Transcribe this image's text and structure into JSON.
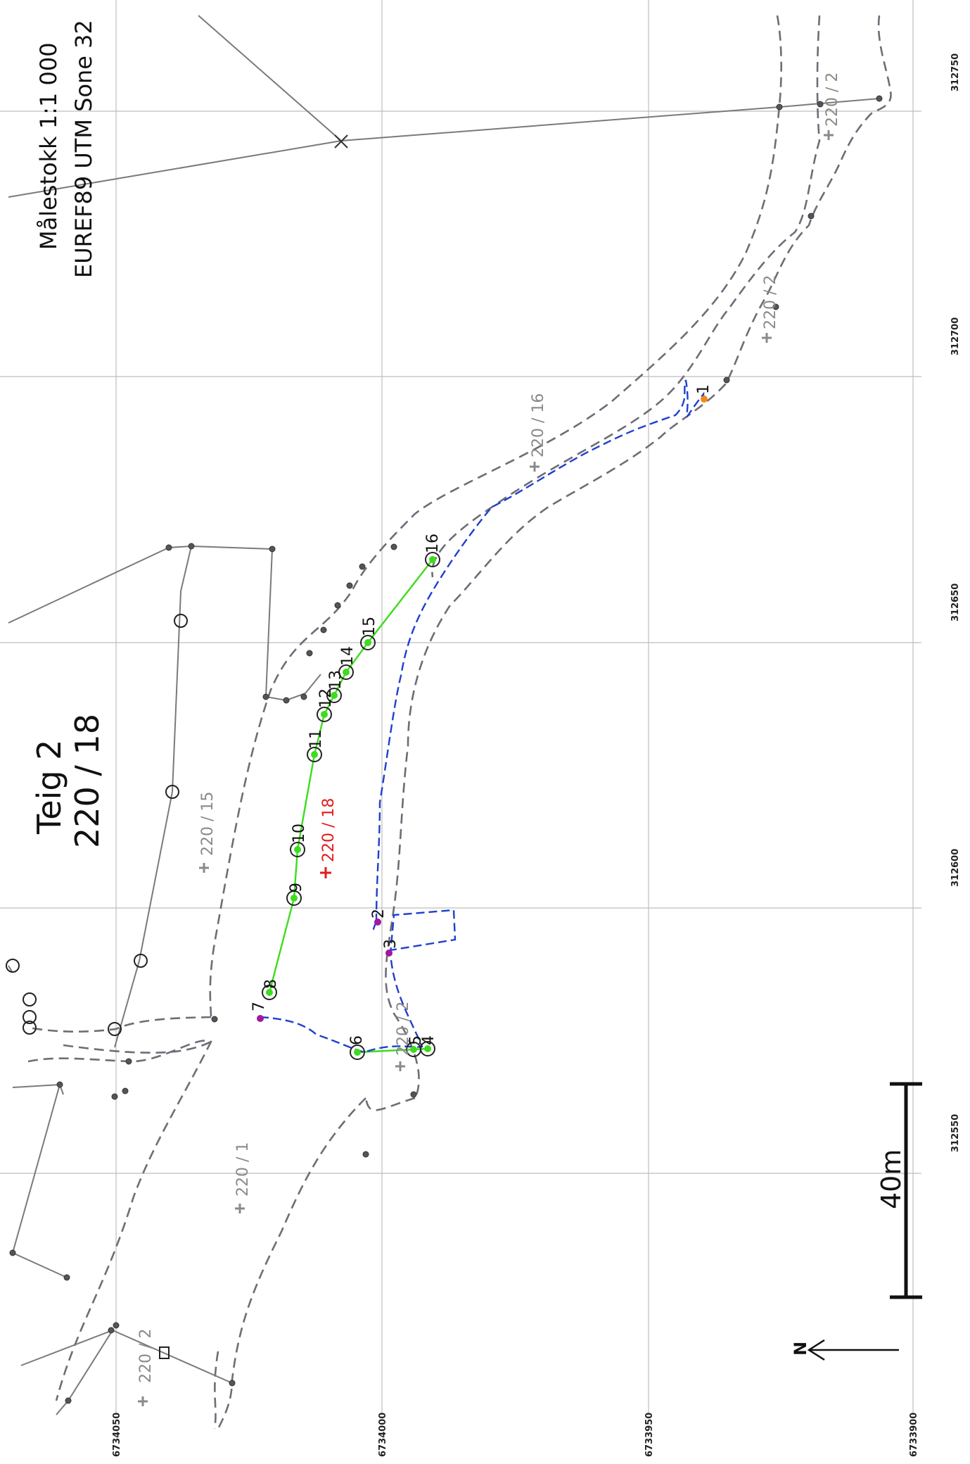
{
  "map": {
    "scale_text": "Målestokk 1:1 000",
    "crs_text": "EUREF89 UTM Sone 32",
    "title_line1": "Teig 2",
    "title_line2": "220 / 18",
    "scale_bar_label": "40m",
    "north_label": "N",
    "grid": {
      "easting_labels": [
        "312750",
        "312700",
        "312650",
        "312600",
        "312550"
      ],
      "northing_labels": [
        "6734050",
        "6734000",
        "6733950",
        "6733900"
      ]
    },
    "parcels": [
      {
        "id": "p-220-2-a",
        "label": "220 / 2"
      },
      {
        "id": "p-220-2-b",
        "label": "220 / 2"
      },
      {
        "id": "p-220-16",
        "label": "220 / 16"
      },
      {
        "id": "p-220-15",
        "label": "220 / 15"
      },
      {
        "id": "p-220-18",
        "label": "220 / 18"
      },
      {
        "id": "p-220-2-c",
        "label": "220 / 2"
      },
      {
        "id": "p-220-1",
        "label": "220 / 1"
      },
      {
        "id": "p-220-2-d",
        "label": "220 / 2"
      }
    ],
    "points": [
      {
        "id": "pt1",
        "label": "1"
      },
      {
        "id": "pt2",
        "label": "2"
      },
      {
        "id": "pt3",
        "label": "3"
      },
      {
        "id": "pt4",
        "label": "4"
      },
      {
        "id": "pt5",
        "label": "5"
      },
      {
        "id": "pt6",
        "label": "6"
      },
      {
        "id": "pt7",
        "label": "7"
      },
      {
        "id": "pt8",
        "label": "8"
      },
      {
        "id": "pt9",
        "label": "9"
      },
      {
        "id": "pt10",
        "label": "10"
      },
      {
        "id": "pt11",
        "label": "11"
      },
      {
        "id": "pt12",
        "label": "12"
      },
      {
        "id": "pt13",
        "label": "13"
      },
      {
        "id": "pt14",
        "label": "14"
      },
      {
        "id": "pt15",
        "label": "15"
      },
      {
        "id": "pt16",
        "label": "16"
      }
    ],
    "colors": {
      "grid": "#bdbdbd",
      "boundary_dashed": "#6d6d78",
      "survey_line": "#3ddc1d",
      "new_boundary": "#1f3fd0",
      "target_parcel": "#e41a1c",
      "point_magenta": "#a018a0",
      "point_orange": "#f08a1c",
      "building_line": "#7a7a7a",
      "label_gray": "#8a8a8a"
    }
  }
}
